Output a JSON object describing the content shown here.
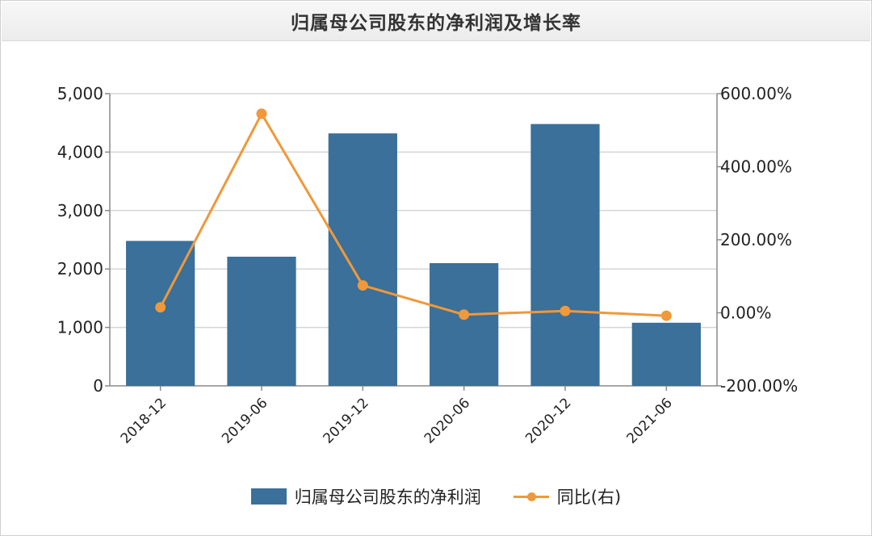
{
  "title": "归属母公司股东的净利润及增长率",
  "chart_data": {
    "type": "bar",
    "categories": [
      "2018-12",
      "2019-06",
      "2019-12",
      "2020-06",
      "2020-12",
      "2021-06"
    ],
    "series": [
      {
        "name": "归属母公司股东的净利润",
        "type": "bar",
        "axis": "left",
        "values": [
          2480,
          2210,
          4320,
          2100,
          4480,
          1080
        ]
      },
      {
        "name": "同比(右)",
        "type": "line",
        "axis": "right",
        "values": [
          15,
          545,
          75,
          -5,
          5,
          -8
        ]
      }
    ],
    "left_axis": {
      "min": 0,
      "max": 5000,
      "ticks": [
        "0",
        "1,000",
        "2,000",
        "3,000",
        "4,000",
        "5,000"
      ]
    },
    "right_axis": {
      "min": -200,
      "max": 600,
      "ticks": [
        "-200.00%",
        "0.00%",
        "200.00%",
        "400.00%",
        "600.00%"
      ]
    },
    "grid": true,
    "legend": "bottom"
  },
  "legend": {
    "bar_label": "归属母公司股东的净利润",
    "line_label": "同比(右)"
  },
  "colors": {
    "bar": "#3a7099",
    "line": "#f0983a",
    "grid": "#d5d5d5",
    "axis": "#8a8a8a"
  }
}
